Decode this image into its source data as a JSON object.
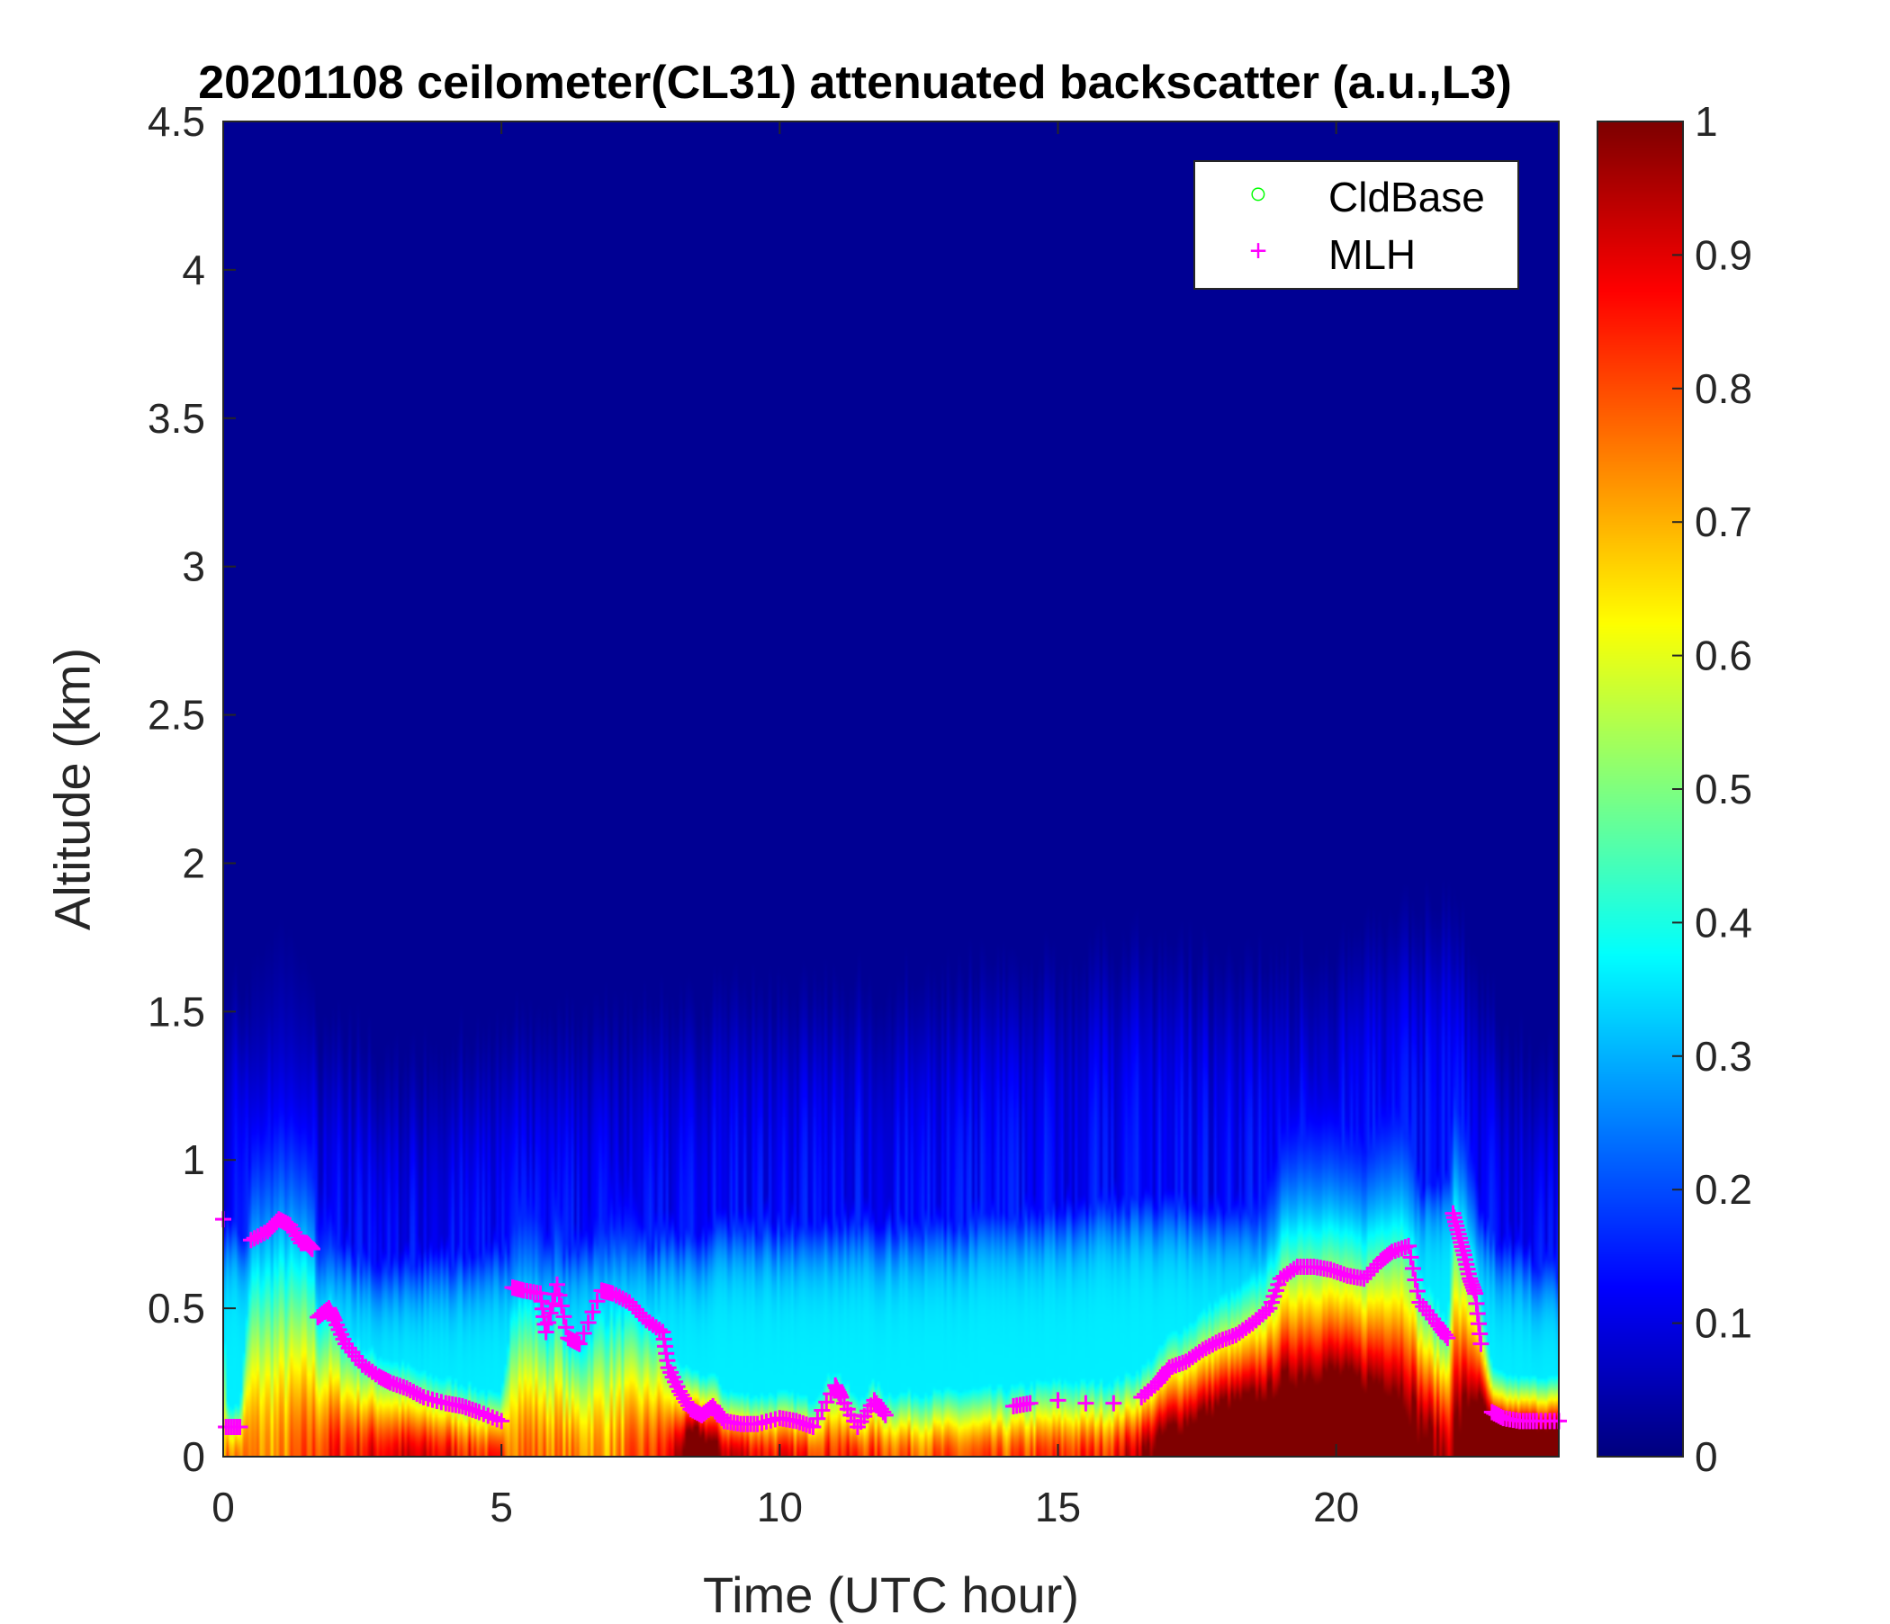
{
  "chart_data": {
    "type": "heatmap",
    "title": "20201108 ceilometer(CL31) attenuated backscatter (a.u.,L3)",
    "xlabel": "Time (UTC hour)",
    "ylabel": "Altitude (km)",
    "xlim": [
      0,
      24
    ],
    "ylim": [
      0,
      4.5
    ],
    "xticks": [
      "0",
      "5",
      "10",
      "15",
      "20"
    ],
    "xtick_values": [
      0,
      5,
      10,
      15,
      20
    ],
    "yticks": [
      "0",
      "0.5",
      "1",
      "1.5",
      "2",
      "2.5",
      "3",
      "3.5",
      "4",
      "4.5"
    ],
    "ytick_values": [
      0,
      0.5,
      1,
      1.5,
      2,
      2.5,
      3,
      3.5,
      4,
      4.5
    ],
    "colorbar": {
      "colormap": "jet",
      "range": [
        0,
        1
      ],
      "ticks": [
        "0",
        "0.1",
        "0.2",
        "0.3",
        "0.4",
        "0.5",
        "0.6",
        "0.7",
        "0.8",
        "0.9",
        "1"
      ],
      "tick_values": [
        0,
        0.1,
        0.2,
        0.3,
        0.4,
        0.5,
        0.6,
        0.7,
        0.8,
        0.9,
        1
      ]
    },
    "legend": {
      "placement": "top-right",
      "entries": [
        {
          "label": "CldBase",
          "marker": "o",
          "color": "#00ff00"
        },
        {
          "label": "MLH",
          "marker": "+",
          "color": "#ff00ff"
        }
      ]
    },
    "backscatter_estimate": {
      "hours": [
        0,
        1,
        2,
        3,
        4,
        5,
        6,
        7,
        8,
        8.5,
        9,
        10,
        11,
        12,
        13,
        14,
        15,
        16,
        17,
        18,
        19,
        20,
        21,
        22,
        22.7,
        23,
        24
      ],
      "surface_intensity": [
        0.75,
        0.72,
        0.85,
        0.9,
        0.88,
        0.8,
        0.75,
        0.72,
        0.85,
        1.2,
        0.95,
        0.85,
        0.85,
        0.8,
        0.78,
        0.78,
        0.82,
        0.85,
        1.1,
        1.25,
        1.25,
        1.3,
        1.2,
        0.95,
        1.3,
        1.3,
        1.3
      ],
      "aerosol_layer_top_km": [
        1.0,
        0.95,
        0.9,
        0.82,
        0.85,
        0.9,
        0.9,
        0.95,
        0.95,
        0.95,
        1.0,
        1.0,
        1.0,
        1.0,
        1.0,
        1.05,
        1.05,
        1.1,
        1.1,
        1.05,
        1.05,
        1.1,
        1.15,
        1.2,
        1.0,
        0.9,
        0.8
      ]
    },
    "series": [
      {
        "name": "MLH",
        "x": [
          0,
          0.05,
          0.3,
          0.5,
          0.8,
          1.0,
          1.2,
          1.4,
          1.5,
          1.6,
          1.7,
          1.9,
          2.0,
          2.2,
          2.5,
          2.8,
          3.0,
          3.3,
          3.6,
          4.0,
          4.3,
          4.6,
          5.0,
          5.2,
          5.4,
          5.7,
          5.8,
          6.0,
          6.2,
          6.4,
          6.8,
          7.0,
          7.3,
          7.6,
          7.9,
          8.0,
          8.2,
          8.4,
          8.6,
          8.8,
          9.0,
          9.3,
          9.6,
          10.0,
          10.3,
          10.6,
          11.0,
          11.1,
          11.4,
          11.7,
          11.9,
          14.2,
          14.5,
          15.0,
          15.5,
          16.0,
          16.5,
          16.8,
          17.0,
          17.3,
          17.6,
          17.9,
          18.2,
          18.5,
          18.8,
          19.0,
          19.3,
          19.6,
          19.9,
          20.2,
          20.5,
          20.8,
          21.0,
          21.3,
          21.5,
          21.8,
          22.0,
          22.1,
          22.2,
          22.3,
          22.4,
          22.5,
          22.6,
          22.8,
          23.0,
          23.3,
          23.6,
          24.0
        ],
        "y": [
          0.8,
          0.1,
          0.1,
          0.73,
          0.76,
          0.8,
          0.78,
          0.72,
          0.72,
          0.7,
          0.47,
          0.5,
          0.46,
          0.38,
          0.31,
          0.27,
          0.25,
          0.23,
          0.2,
          0.18,
          0.17,
          0.15,
          0.12,
          0.57,
          0.56,
          0.55,
          0.42,
          0.58,
          0.4,
          0.38,
          0.56,
          0.55,
          0.52,
          0.46,
          0.42,
          0.3,
          0.22,
          0.16,
          0.14,
          0.17,
          0.12,
          0.11,
          0.11,
          0.13,
          0.12,
          0.1,
          0.24,
          0.2,
          0.1,
          0.19,
          0.14,
          0.17,
          0.18,
          0.19,
          0.18,
          0.18,
          0.2,
          0.25,
          0.3,
          0.32,
          0.36,
          0.39,
          0.41,
          0.45,
          0.5,
          0.6,
          0.64,
          0.64,
          0.63,
          0.61,
          0.6,
          0.66,
          0.69,
          0.71,
          0.52,
          0.45,
          0.4,
          0.82,
          0.75,
          0.68,
          0.6,
          0.55,
          0.38,
          0.15,
          0.13,
          0.12,
          0.12,
          0.12
        ]
      },
      {
        "name": "CldBase",
        "x": [],
        "y": []
      }
    ]
  }
}
